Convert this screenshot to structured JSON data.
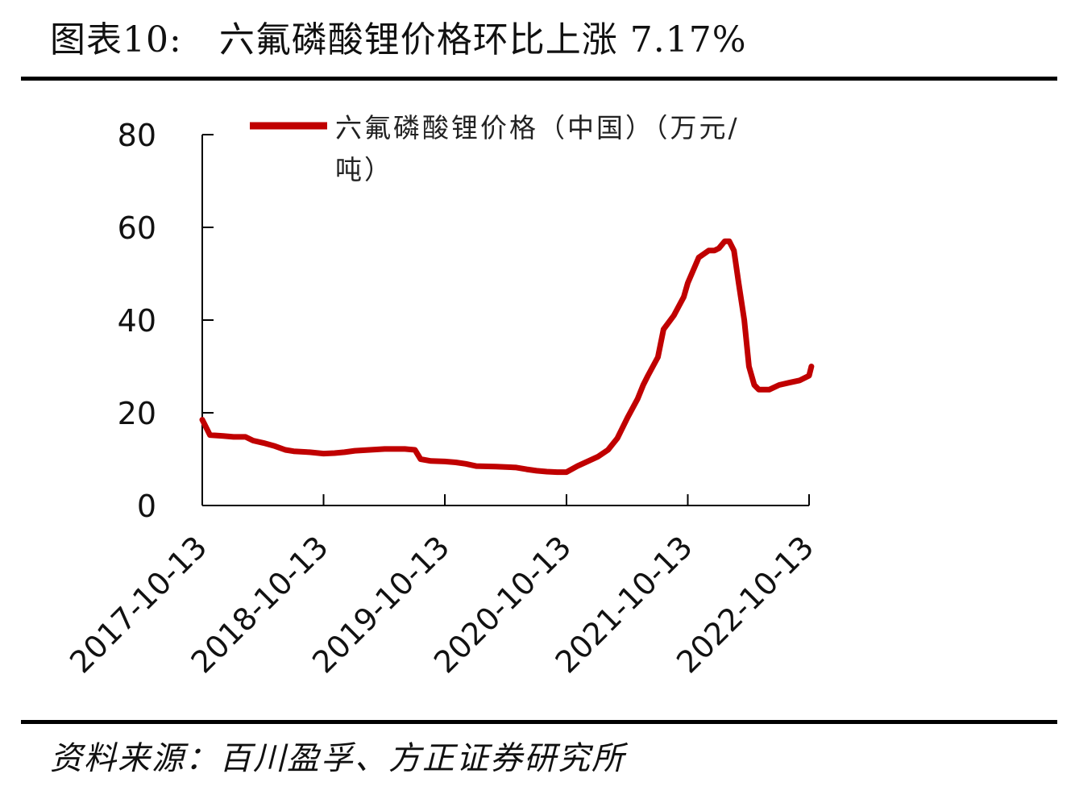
{
  "header": {
    "label": "图表10:",
    "title": "六氟磷酸锂价格环比上涨 7.17%"
  },
  "footer": {
    "source": "资料来源：百川盈孚、方正证券研究所"
  },
  "chart_data": {
    "type": "line",
    "ylim": [
      0,
      80
    ],
    "yticks": [
      0,
      20,
      40,
      60,
      80
    ],
    "xticks": [
      "2017-10-13",
      "2018-10-13",
      "2019-10-13",
      "2020-10-13",
      "2021-10-13",
      "2022-10-13"
    ],
    "grid": false,
    "legend_position": "top-right",
    "colors": {
      "line": "#C00000",
      "axis": "#000000"
    },
    "series": [
      {
        "name": "六氟磷酸锂价格（中国）（万元/吨）",
        "x": [
          "2017-10-13",
          "2017-11-05",
          "2017-12-15",
          "2018-01-15",
          "2018-02-20",
          "2018-03-15",
          "2018-04-15",
          "2018-05-20",
          "2018-06-20",
          "2018-07-15",
          "2018-09-01",
          "2018-10-13",
          "2018-11-15",
          "2018-12-15",
          "2019-01-15",
          "2019-03-01",
          "2019-04-15",
          "2019-06-15",
          "2019-07-15",
          "2019-08-01",
          "2019-09-01",
          "2019-10-13",
          "2019-11-15",
          "2019-12-15",
          "2020-01-15",
          "2020-03-15",
          "2020-05-15",
          "2020-06-15",
          "2020-07-15",
          "2020-08-15",
          "2020-09-15",
          "2020-10-13",
          "2020-11-15",
          "2020-12-15",
          "2021-01-15",
          "2021-02-15",
          "2021-03-15",
          "2021-04-15",
          "2021-05-15",
          "2021-06-01",
          "2021-06-15",
          "2021-07-15",
          "2021-08-01",
          "2021-09-01",
          "2021-10-01",
          "2021-10-13",
          "2021-11-15",
          "2021-12-15",
          "2022-01-01",
          "2022-01-15",
          "2022-02-01",
          "2022-02-15",
          "2022-03-01",
          "2022-03-15",
          "2022-04-01",
          "2022-04-15",
          "2022-05-01",
          "2022-05-15",
          "2022-06-15",
          "2022-07-15",
          "2022-08-15",
          "2022-09-15",
          "2022-10-13",
          "2022-10-20"
        ],
        "values": [
          18.5,
          15.2,
          15.0,
          14.8,
          14.8,
          14.0,
          13.5,
          12.8,
          12.0,
          11.7,
          11.5,
          11.2,
          11.3,
          11.5,
          11.8,
          12.0,
          12.2,
          12.2,
          12.0,
          10.0,
          9.6,
          9.5,
          9.3,
          9.0,
          8.5,
          8.4,
          8.2,
          7.8,
          7.5,
          7.3,
          7.2,
          7.2,
          8.5,
          9.5,
          10.5,
          12.0,
          14.5,
          19.0,
          23.0,
          26.0,
          28.0,
          32.0,
          38.0,
          41.0,
          45.0,
          48.0,
          53.5,
          55.0,
          55.0,
          55.5,
          57.0,
          57.0,
          55.0,
          48.0,
          40.0,
          30.0,
          26.0,
          25.0,
          25.0,
          26.0,
          26.5,
          27.0,
          28.0,
          30.0
        ]
      }
    ]
  }
}
